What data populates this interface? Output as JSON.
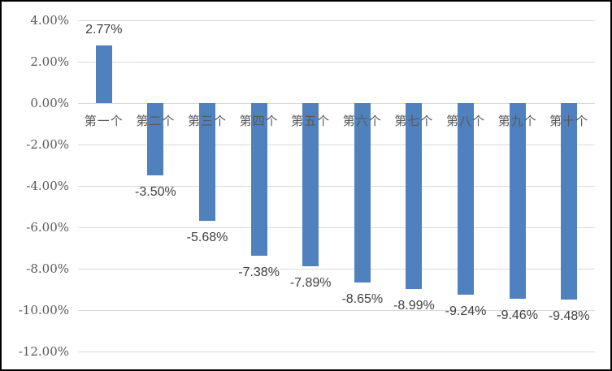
{
  "chart_data": {
    "type": "bar",
    "title": "",
    "xlabel": "",
    "ylabel": "",
    "categories": [
      "第一个",
      "第二个",
      "第三个",
      "第四个",
      "第五个",
      "第六个",
      "第七个",
      "第八个",
      "第九个",
      "第十个"
    ],
    "values": [
      2.77,
      -3.5,
      -5.68,
      -7.38,
      -7.89,
      -8.65,
      -8.99,
      -9.24,
      -9.46,
      -9.48
    ],
    "data_labels": [
      "2.77%",
      "-3.50%",
      "-5.68%",
      "-7.38%",
      "-7.89%",
      "-8.65%",
      "-8.99%",
      "-9.24%",
      "-9.46%",
      "-9.48%"
    ],
    "y_tick_labels": [
      "4.00%",
      "2.00%",
      "0.00%",
      "-2.00%",
      "-4.00%",
      "-6.00%",
      "-8.00%",
      "-10.00%",
      "-12.00%"
    ],
    "ylim": [
      -12,
      4
    ],
    "y_tick_step": 2,
    "grid": true,
    "legend": "none",
    "colors": {
      "bar": "#4E81BD",
      "gridline": "#D9D9D9",
      "y_tick_label": "#595959",
      "data_label": "#404040",
      "category_label": "#595959",
      "frame_border": "#000000",
      "background": "#FFFFFF"
    }
  }
}
